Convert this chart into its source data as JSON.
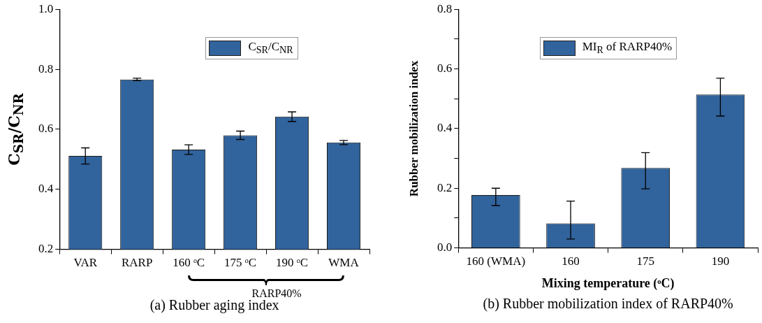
{
  "chart_data": [
    {
      "type": "bar",
      "title": "(a) Rubber aging index",
      "ylabel": "C$_{SR}$/C$_{NR}$",
      "categories": [
        "VAR",
        "RARP",
        "160 ᵒC",
        "175 ᵒC",
        "190 ᵒC",
        "WMA"
      ],
      "series": [
        {
          "name": "C$_{SR}$/C$_{NR}$",
          "color": "#31639c",
          "values": [
            0.511,
            0.766,
            0.532,
            0.58,
            0.642,
            0.556
          ],
          "errors": [
            0.027,
            0.004,
            0.016,
            0.014,
            0.016,
            0.007
          ]
        }
      ],
      "ylim": [
        0.2,
        1.0
      ],
      "yticks": [
        0.2,
        0.4,
        0.6,
        0.8,
        {
          "value": 1,
          "label": "1.0"
        }
      ],
      "grid": false,
      "legend": "top right",
      "annotations": [
        "RARP40%"
      ]
    },
    {
      "type": "bar",
      "title": "(b) Rubber mobilization index of RARP40%",
      "xlabel": "Mixing temperature (ᵒC)",
      "ylabel": "Rubber mobilization index",
      "categories": [
        "160 (WMA)",
        "160",
        "175",
        "190"
      ],
      "series": [
        {
          "name": "MI$_{R}$ of RARP40%",
          "color": "#31639c",
          "values": [
            0.177,
            0.082,
            0.268,
            0.514
          ],
          "errors": [
            [
              0.142,
              0.2
            ],
            [
              0.03,
              0.157
            ],
            [
              0.198,
              0.319
            ],
            [
              0.442,
              0.569
            ]
          ]
        }
      ],
      "ylim": [
        0,
        0.8
      ],
      "yticks": [
        {
          "value": 0,
          "label": "0.0"
        },
        {
          "value": 0.1,
          "label": null
        },
        0.2,
        {
          "value": 0.3,
          "label": null
        },
        0.4,
        {
          "value": 0.5,
          "label": null
        },
        0.6,
        {
          "value": 0.7,
          "label": null
        },
        0.8
      ],
      "grid": false,
      "legend": "top"
    }
  ]
}
